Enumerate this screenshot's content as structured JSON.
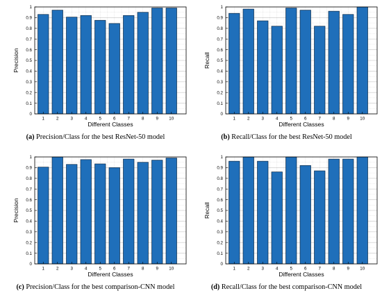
{
  "chart_data": [
    {
      "type": "bar",
      "caption_tag": "(a)",
      "caption": "Precision/Class for the best ResNet-50 model",
      "xlabel": "Different Classes",
      "ylabel": "Precision",
      "categories": [
        "1",
        "2",
        "3",
        "4",
        "5",
        "6",
        "7",
        "8",
        "9",
        "10"
      ],
      "values": [
        0.93,
        0.97,
        0.905,
        0.92,
        0.875,
        0.845,
        0.92,
        0.95,
        0.99,
        0.99
      ],
      "ylim": [
        0,
        1
      ],
      "yticks": [
        "0",
        "0.1",
        "0.2",
        "0.3",
        "0.4",
        "0.5",
        "0.6",
        "0.7",
        "0.8",
        "0.9",
        "1"
      ],
      "grid": true
    },
    {
      "type": "bar",
      "caption_tag": "(b)",
      "caption": "Recall/Class for the best ResNet-50 model",
      "xlabel": "Different Classes",
      "ylabel": "Recall",
      "categories": [
        "1",
        "2",
        "3",
        "4",
        "5",
        "6",
        "7",
        "8",
        "9",
        "10"
      ],
      "values": [
        0.94,
        0.98,
        0.87,
        0.82,
        0.99,
        0.97,
        0.82,
        0.96,
        0.93,
        1.0
      ],
      "ylim": [
        0,
        1
      ],
      "yticks": [
        "0",
        "0.1",
        "0.2",
        "0.3",
        "0.4",
        "0.5",
        "0.6",
        "0.7",
        "0.8",
        "0.9",
        "1"
      ],
      "grid": true
    },
    {
      "type": "bar",
      "caption_tag": "(c)",
      "caption": "Precision/Class for the best comparison-CNN model",
      "xlabel": "Different Classes",
      "ylabel": "Precision",
      "categories": [
        "1",
        "2",
        "3",
        "4",
        "5",
        "6",
        "7",
        "8",
        "9",
        "10"
      ],
      "values": [
        0.905,
        1.0,
        0.93,
        0.975,
        0.935,
        0.9,
        0.98,
        0.95,
        0.97,
        0.99
      ],
      "ylim": [
        0,
        1
      ],
      "yticks": [
        "0",
        "0.1",
        "0.2",
        "0.3",
        "0.4",
        "0.5",
        "0.6",
        "0.7",
        "0.8",
        "0.9",
        "1"
      ],
      "grid": true
    },
    {
      "type": "bar",
      "caption_tag": "(d)",
      "caption": "Recall/Class for the best comparison-CNN model",
      "xlabel": "Different Classes",
      "ylabel": "Recall",
      "categories": [
        "1",
        "2",
        "3",
        "4",
        "5",
        "6",
        "7",
        "8",
        "9",
        "10"
      ],
      "values": [
        0.96,
        1.0,
        0.96,
        0.86,
        1.0,
        0.92,
        0.87,
        0.98,
        0.98,
        1.0
      ],
      "ylim": [
        0,
        1
      ],
      "yticks": [
        "0",
        "0.1",
        "0.2",
        "0.3",
        "0.4",
        "0.5",
        "0.6",
        "0.7",
        "0.8",
        "0.9",
        "1"
      ],
      "grid": true
    }
  ],
  "colors": {
    "bar": "#1f6fba",
    "bar_edge": "#0d2a47",
    "grid": "#d9d9d9",
    "axis": "#000000"
  }
}
